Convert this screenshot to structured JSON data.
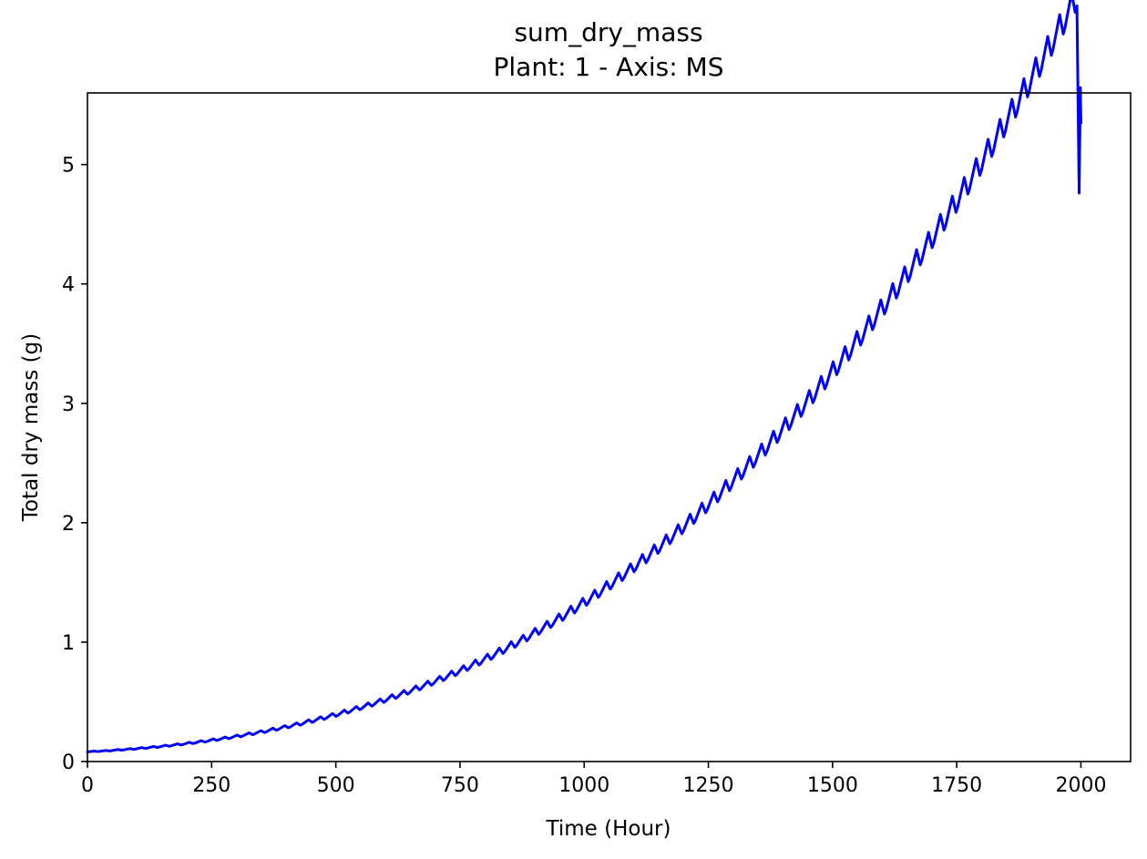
{
  "chart_data": {
    "type": "line",
    "title": "sum_dry_mass",
    "subtitle": "Plant: 1 - Axis: MS",
    "xlabel": "Time (Hour)",
    "ylabel": "Total dry mass (g)",
    "xlim": [
      0,
      2100
    ],
    "ylim": [
      0,
      5.6
    ],
    "xticks": [
      0,
      250,
      500,
      750,
      1000,
      1250,
      1500,
      1750,
      2000
    ],
    "yticks": [
      0,
      1,
      2,
      3,
      4,
      5
    ],
    "grid": false,
    "line_color": "#0000ff",
    "series": [
      {
        "x": [
          0,
          24,
          48,
          72,
          96,
          120,
          144,
          168,
          192,
          216,
          240,
          264,
          288,
          312,
          336,
          360,
          384,
          408,
          432,
          456,
          480,
          504,
          528,
          552,
          576,
          600,
          624,
          648,
          672,
          696,
          720,
          744,
          768,
          792,
          816,
          840,
          864,
          888,
          912,
          936,
          960,
          984,
          1008,
          1032,
          1056,
          1080,
          1104,
          1128,
          1152,
          1176,
          1200,
          1224,
          1248,
          1272,
          1296,
          1320,
          1344,
          1368,
          1392,
          1416,
          1440,
          1464,
          1488,
          1512,
          1536,
          1560,
          1584,
          1608,
          1632,
          1656,
          1680,
          1704,
          1728,
          1752,
          1776,
          1800,
          1824,
          1848,
          1872,
          1896,
          1920,
          1944,
          1968,
          1992,
          2000
        ],
        "values": [
          0.08,
          0.085,
          0.09,
          0.097,
          0.104,
          0.112,
          0.121,
          0.131,
          0.142,
          0.154,
          0.167,
          0.181,
          0.196,
          0.212,
          0.23,
          0.248,
          0.268,
          0.289,
          0.311,
          0.335,
          0.36,
          0.386,
          0.414,
          0.443,
          0.473,
          0.505,
          0.539,
          0.574,
          0.611,
          0.65,
          0.69,
          0.732,
          0.776,
          0.822,
          0.87,
          0.92,
          0.972,
          1.026,
          1.082,
          1.14,
          1.2,
          1.263,
          1.328,
          1.395,
          1.465,
          1.537,
          1.611,
          1.688,
          1.767,
          1.849,
          1.933,
          2.02,
          2.11,
          2.202,
          2.297,
          2.395,
          2.495,
          2.598,
          2.704,
          2.813,
          2.924,
          3.039,
          3.156,
          3.276,
          3.4,
          3.526,
          3.655,
          3.787,
          3.922,
          4.06,
          4.202,
          4.346,
          4.494,
          4.645,
          4.799,
          4.956,
          5.116,
          5.28,
          5.447,
          5.617,
          5.79,
          5.967,
          6.147,
          6.33,
          5.35
        ]
      }
    ]
  }
}
